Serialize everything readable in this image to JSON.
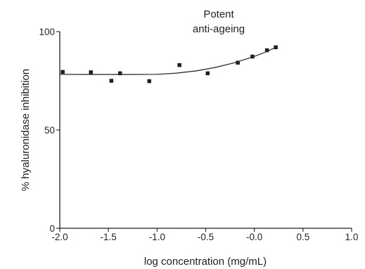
{
  "chart_data": {
    "type": "scatter",
    "title": "",
    "annotation": [
      "Potent",
      "anti-ageing"
    ],
    "xlabel": "log concentration (mg/mL)",
    "ylabel": "% hyaluronidase inhibition",
    "xlim": [
      -2.0,
      1.0
    ],
    "ylim": [
      0,
      100
    ],
    "x_ticks": [
      -2.0,
      -1.5,
      -1.0,
      -0.5,
      -0.0,
      0.5,
      1.0
    ],
    "x_tick_labels": [
      "-2.0",
      "-1.5",
      "-1.0",
      "-0.5",
      "-0.0",
      "0.5",
      "1.0"
    ],
    "y_ticks": [
      0,
      50,
      100
    ],
    "y_tick_labels": [
      "0",
      "50",
      "100"
    ],
    "grid": false,
    "legend": "none",
    "marker": "square",
    "color": "#231f20",
    "points": [
      {
        "x": -1.97,
        "y": 79.5
      },
      {
        "x": -1.68,
        "y": 79.3
      },
      {
        "x": -1.47,
        "y": 75.0
      },
      {
        "x": -1.38,
        "y": 78.8
      },
      {
        "x": -1.08,
        "y": 74.8
      },
      {
        "x": -0.77,
        "y": 83.0
      },
      {
        "x": -0.48,
        "y": 78.8
      },
      {
        "x": -0.17,
        "y": 84.2
      },
      {
        "x": -0.02,
        "y": 87.3
      },
      {
        "x": 0.13,
        "y": 90.5
      },
      {
        "x": 0.22,
        "y": 92.0
      }
    ],
    "fit_curve": [
      {
        "x": -2.0,
        "y": 78.3
      },
      {
        "x": -1.75,
        "y": 78.2
      },
      {
        "x": -1.5,
        "y": 78.2
      },
      {
        "x": -1.25,
        "y": 78.2
      },
      {
        "x": -1.0,
        "y": 78.3
      },
      {
        "x": -0.8,
        "y": 78.9
      },
      {
        "x": -0.6,
        "y": 80.0
      },
      {
        "x": -0.4,
        "y": 81.8
      },
      {
        "x": -0.2,
        "y": 84.2
      },
      {
        "x": 0.0,
        "y": 87.4
      },
      {
        "x": 0.1,
        "y": 89.3
      },
      {
        "x": 0.22,
        "y": 92.0
      }
    ]
  }
}
